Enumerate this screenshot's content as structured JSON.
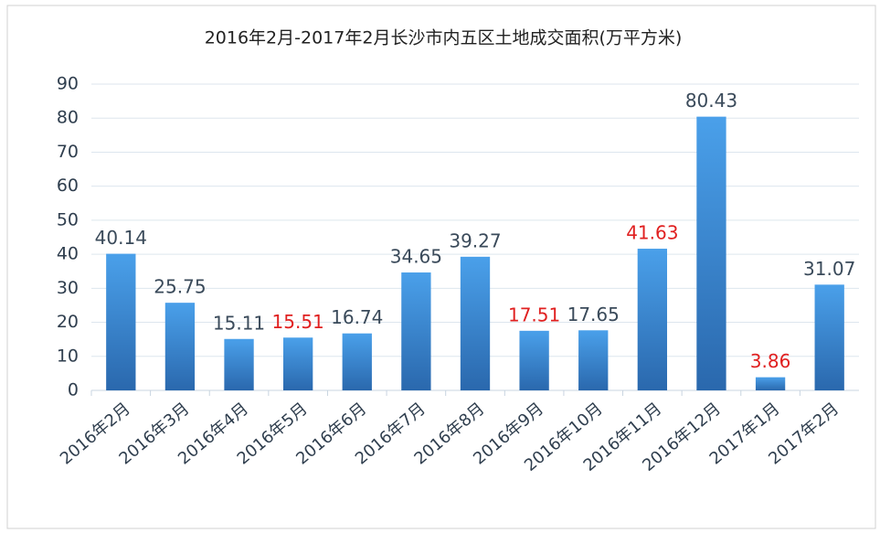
{
  "chart_data": {
    "type": "bar",
    "title": "2016年2月-2017年2月长沙市内五区土地成交面积(万平方米)",
    "categories": [
      "2016年2月",
      "2016年3月",
      "2016年4月",
      "2016年5月",
      "2016年6月",
      "2016年7月",
      "2016年8月",
      "2016年9月",
      "2016年10月",
      "2016年11月",
      "2016年12月",
      "2017年1月",
      "2017年2月"
    ],
    "values": [
      40.14,
      25.75,
      15.11,
      15.51,
      16.74,
      34.65,
      39.27,
      17.51,
      17.65,
      41.63,
      80.43,
      3.86,
      31.07
    ],
    "value_label_colors": [
      "#3a4a5a",
      "#3a4a5a",
      "#3a4a5a",
      "#e02020",
      "#3a4a5a",
      "#3a4a5a",
      "#3a4a5a",
      "#e02020",
      "#3a4a5a",
      "#e02020",
      "#3a4a5a",
      "#e02020",
      "#3a4a5a"
    ],
    "color": "#3a86d4",
    "ylim": [
      0,
      90
    ],
    "yticks": [
      0,
      10,
      20,
      30,
      40,
      50,
      60,
      70,
      80,
      90
    ],
    "grid": true
  }
}
